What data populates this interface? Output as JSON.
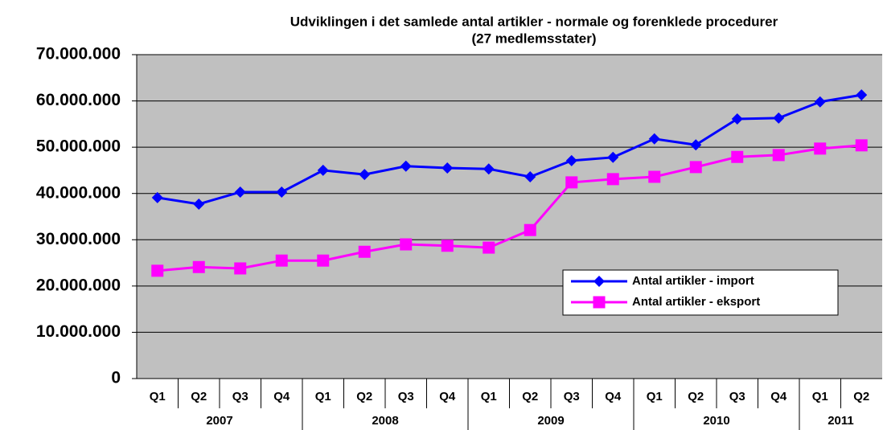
{
  "chart_data": {
    "type": "line",
    "title": "Udviklingen i det samlede antal artikler - normale og forenklede procedurer",
    "subtitle": "(27 medlemsstater)",
    "categories": [
      "Q1",
      "Q2",
      "Q3",
      "Q4",
      "Q1",
      "Q2",
      "Q3",
      "Q4",
      "Q1",
      "Q2",
      "Q3",
      "Q4",
      "Q1",
      "Q2",
      "Q3",
      "Q4",
      "Q1",
      "Q2"
    ],
    "x_groups": [
      {
        "label": "2007",
        "count": 4
      },
      {
        "label": "2008",
        "count": 4
      },
      {
        "label": "2009",
        "count": 4
      },
      {
        "label": "2010",
        "count": 4
      },
      {
        "label": "2011",
        "count": 2
      }
    ],
    "series": [
      {
        "name": "Antal artikler - import",
        "color": "#0000ff",
        "marker": "diamond",
        "values": [
          39100000,
          37700000,
          40300000,
          40300000,
          45000000,
          44100000,
          45900000,
          45500000,
          45300000,
          43600000,
          47100000,
          47800000,
          51800000,
          50500000,
          56100000,
          56300000,
          59800000,
          61300000
        ]
      },
      {
        "name": "Antal artikler - eksport",
        "color": "#ff00ff",
        "marker": "square",
        "values": [
          23300000,
          24100000,
          23800000,
          25500000,
          25500000,
          27400000,
          29000000,
          28700000,
          28300000,
          32100000,
          42400000,
          43100000,
          43600000,
          45700000,
          47900000,
          48300000,
          49700000,
          50400000
        ]
      }
    ],
    "ylim": [
      0,
      70000000
    ],
    "yticks": [
      0,
      {
        "value": 10000000,
        "label": "10.000.000"
      },
      {
        "value": 20000000,
        "label": "20.000.000"
      },
      {
        "value": 30000000,
        "label": "30.000.000"
      },
      {
        "value": 40000000,
        "label": "40.000.000"
      },
      {
        "value": 50000000,
        "label": "50.000.000"
      },
      {
        "value": 60000000,
        "label": "60.000.000"
      },
      {
        "value": 70000000,
        "label": "70.000.000"
      }
    ],
    "grid": true,
    "legend": "right",
    "plot_background": "#c0c0c0"
  }
}
